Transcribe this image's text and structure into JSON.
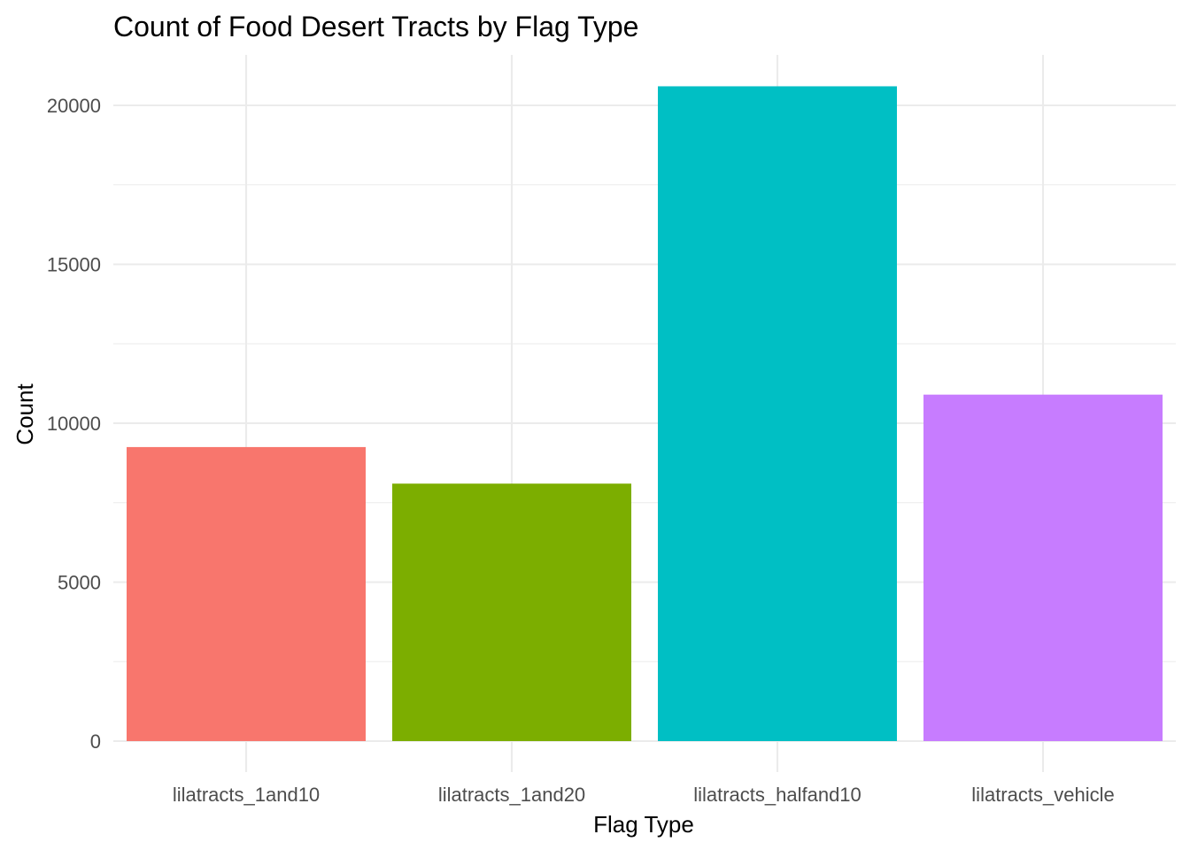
{
  "chart_data": {
    "type": "bar",
    "title": "Count of Food Desert Tracts by Flag Type",
    "xlabel": "Flag Type",
    "ylabel": "Count",
    "categories": [
      "lilatracts_1and10",
      "lilatracts_1and20",
      "lilatracts_halfand10",
      "lilatracts_vehicle"
    ],
    "values": [
      9250,
      8100,
      20600,
      10900
    ],
    "colors": [
      "#F8766D",
      "#7CAE00",
      "#00BFC4",
      "#C77CFF"
    ],
    "ylim": [
      0,
      21600
    ],
    "yticks": [
      0,
      5000,
      10000,
      15000,
      20000
    ],
    "ytick_labels": [
      "0",
      "5000",
      "10000",
      "15000",
      "20000"
    ],
    "grid": true,
    "gridline_color": "#ebebeb",
    "legend": "none"
  }
}
